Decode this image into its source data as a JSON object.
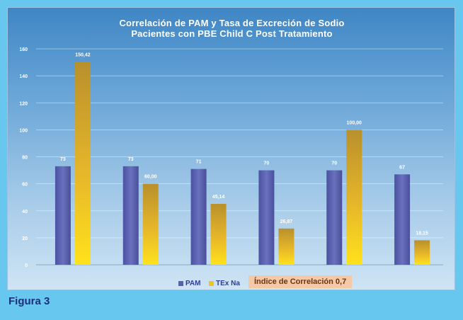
{
  "chart_data": {
    "type": "bar",
    "title": [
      "Correlación de PAM  y Tasa de Excreción de Sodio",
      "Pacientes con PBE  Child C   Post Tratamiento"
    ],
    "categories": [
      "",
      "",
      "",
      "",
      "",
      ""
    ],
    "series": [
      {
        "name": "PAM",
        "values": [
          73,
          73,
          71,
          70,
          70,
          67
        ],
        "labels": [
          "73",
          "73",
          "71",
          "70",
          "70",
          "67"
        ],
        "color": "#5a5fae"
      },
      {
        "name": "TEx Na",
        "values": [
          150.42,
          60.0,
          45.14,
          26.87,
          100.0,
          18.15
        ],
        "labels": [
          "150,42",
          "60,00",
          "45,14",
          "26,87",
          "100,00",
          "18,15"
        ],
        "color": "#f2c21e"
      }
    ],
    "ylim": [
      0,
      160
    ],
    "yticks": [
      0,
      20,
      40,
      60,
      80,
      100,
      120,
      140,
      160
    ],
    "grid": true,
    "legend": "bottom",
    "annotation": "Índice de Correlación  0,7"
  },
  "legend_labels": {
    "pam": "PAM",
    "texna": "TEx Na"
  },
  "figure_caption": "Figura 3"
}
